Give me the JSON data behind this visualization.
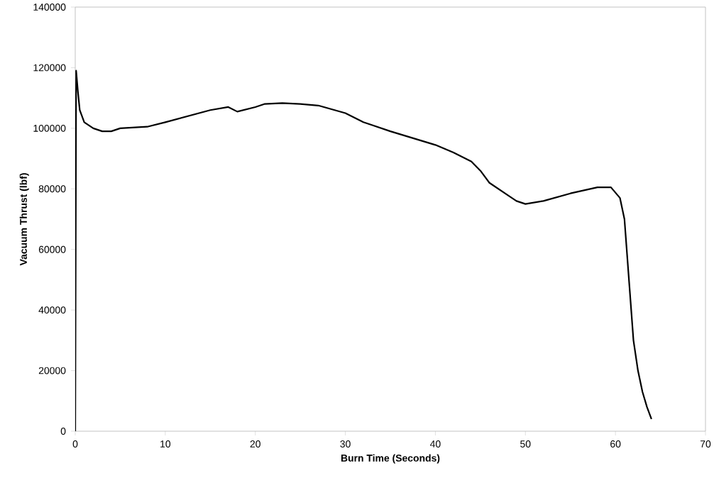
{
  "chart_data": {
    "type": "line",
    "xlabel": "Burn Time (Seconds)",
    "ylabel": "Vacuum Thrust (lbf)",
    "xlim": [
      0,
      70
    ],
    "ylim": [
      0,
      140000
    ],
    "xticks": [
      0,
      10,
      20,
      30,
      40,
      50,
      60,
      70
    ],
    "yticks": [
      0,
      20000,
      40000,
      60000,
      80000,
      100000,
      120000,
      140000
    ],
    "marker": "none",
    "line_style": "solid",
    "series": [
      {
        "color": "#000000",
        "x": [
          0,
          0.1,
          0.3,
          0.5,
          1,
          2,
          3,
          4,
          5,
          8,
          10,
          15,
          17,
          18,
          20,
          21,
          23,
          25,
          27,
          30,
          32,
          33,
          35,
          40,
          42,
          44,
          45,
          46,
          48,
          49,
          50,
          52,
          55,
          58,
          59.5,
          60.5,
          61,
          61.5,
          62,
          62.5,
          63,
          63.5,
          64
        ],
        "values": [
          0,
          119000,
          112000,
          106000,
          102000,
          100000,
          99000,
          99000,
          100000,
          100500,
          102000,
          106000,
          107000,
          105500,
          107000,
          108000,
          108300,
          108000,
          107500,
          105000,
          102000,
          101000,
          99000,
          94500,
          92000,
          89000,
          86000,
          82000,
          78000,
          76000,
          75000,
          76000,
          78500,
          80500,
          80500,
          77000,
          70000,
          50000,
          30000,
          20000,
          13000,
          8000,
          4000
        ]
      }
    ]
  }
}
